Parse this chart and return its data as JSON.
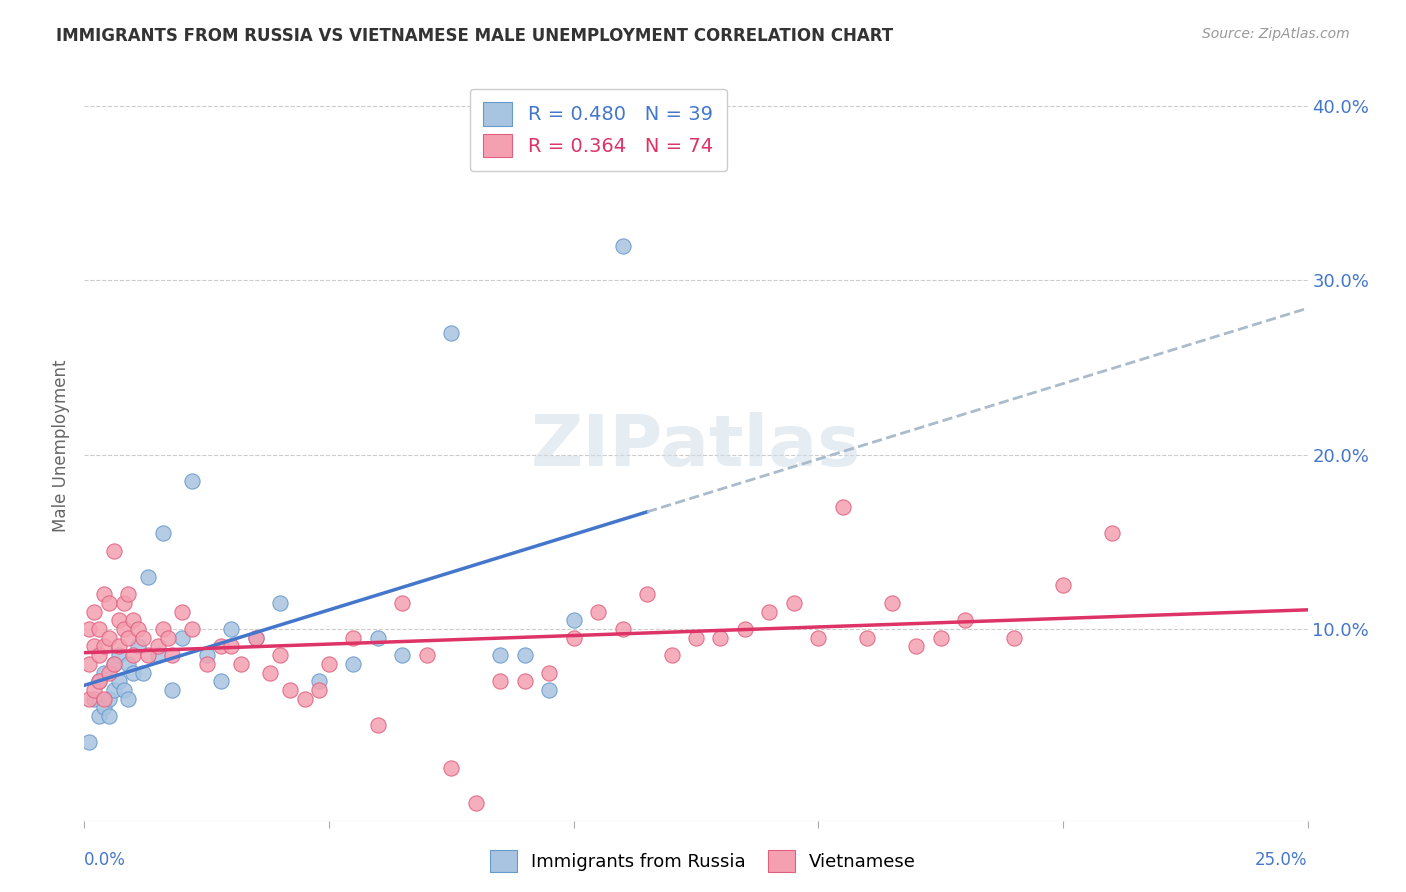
{
  "title": "IMMIGRANTS FROM RUSSIA VS VIETNAMESE MALE UNEMPLOYMENT CORRELATION CHART",
  "source": "Source: ZipAtlas.com",
  "ylabel": "Male Unemployment",
  "yticks": [
    0.0,
    0.1,
    0.2,
    0.3,
    0.4
  ],
  "ytick_labels": [
    "",
    "10.0%",
    "20.0%",
    "30.0%",
    "40.0%"
  ],
  "xlim": [
    0.0,
    0.25
  ],
  "ylim": [
    -0.01,
    0.42
  ],
  "russia_color": "#a8c4e0",
  "vietnamese_color": "#f4a0b0",
  "russia_edge": "#6699cc",
  "vietnamese_edge": "#e06080",
  "trendline_russia_color": "#4477cc",
  "trendline_viet_color": "#dd3366",
  "trendline_ext_color": "#aabbcc",
  "background": "#ffffff",
  "russia_x": [
    0.001,
    0.002,
    0.003,
    0.003,
    0.004,
    0.004,
    0.005,
    0.005,
    0.006,
    0.006,
    0.007,
    0.007,
    0.008,
    0.009,
    0.009,
    0.01,
    0.011,
    0.012,
    0.013,
    0.015,
    0.016,
    0.018,
    0.02,
    0.022,
    0.025,
    0.028,
    0.03,
    0.035,
    0.04,
    0.048,
    0.055,
    0.06,
    0.065,
    0.075,
    0.085,
    0.09,
    0.095,
    0.1,
    0.11
  ],
  "russia_y": [
    0.035,
    0.06,
    0.05,
    0.07,
    0.055,
    0.075,
    0.06,
    0.05,
    0.065,
    0.08,
    0.07,
    0.085,
    0.065,
    0.08,
    0.06,
    0.075,
    0.09,
    0.075,
    0.13,
    0.085,
    0.155,
    0.065,
    0.095,
    0.185,
    0.085,
    0.07,
    0.1,
    0.095,
    0.115,
    0.07,
    0.08,
    0.095,
    0.085,
    0.27,
    0.085,
    0.085,
    0.065,
    0.105,
    0.32
  ],
  "viet_x": [
    0.001,
    0.001,
    0.001,
    0.002,
    0.002,
    0.002,
    0.003,
    0.003,
    0.003,
    0.004,
    0.004,
    0.004,
    0.005,
    0.005,
    0.005,
    0.006,
    0.006,
    0.007,
    0.007,
    0.008,
    0.008,
    0.009,
    0.009,
    0.01,
    0.01,
    0.011,
    0.012,
    0.013,
    0.015,
    0.016,
    0.017,
    0.018,
    0.02,
    0.022,
    0.025,
    0.028,
    0.03,
    0.032,
    0.035,
    0.038,
    0.04,
    0.042,
    0.045,
    0.048,
    0.05,
    0.055,
    0.06,
    0.065,
    0.07,
    0.075,
    0.08,
    0.085,
    0.09,
    0.095,
    0.1,
    0.105,
    0.11,
    0.115,
    0.12,
    0.125,
    0.13,
    0.135,
    0.14,
    0.145,
    0.15,
    0.155,
    0.16,
    0.165,
    0.17,
    0.175,
    0.18,
    0.19,
    0.2,
    0.21
  ],
  "viet_y": [
    0.06,
    0.08,
    0.1,
    0.065,
    0.09,
    0.11,
    0.07,
    0.085,
    0.1,
    0.06,
    0.09,
    0.12,
    0.075,
    0.095,
    0.115,
    0.08,
    0.145,
    0.09,
    0.105,
    0.1,
    0.115,
    0.095,
    0.12,
    0.105,
    0.085,
    0.1,
    0.095,
    0.085,
    0.09,
    0.1,
    0.095,
    0.085,
    0.11,
    0.1,
    0.08,
    0.09,
    0.09,
    0.08,
    0.095,
    0.075,
    0.085,
    0.065,
    0.06,
    0.065,
    0.08,
    0.095,
    0.045,
    0.115,
    0.085,
    0.02,
    0.0,
    0.07,
    0.07,
    0.075,
    0.095,
    0.11,
    0.1,
    0.12,
    0.085,
    0.095,
    0.095,
    0.1,
    0.11,
    0.115,
    0.095,
    0.17,
    0.095,
    0.115,
    0.09,
    0.095,
    0.105,
    0.095,
    0.125,
    0.155
  ]
}
